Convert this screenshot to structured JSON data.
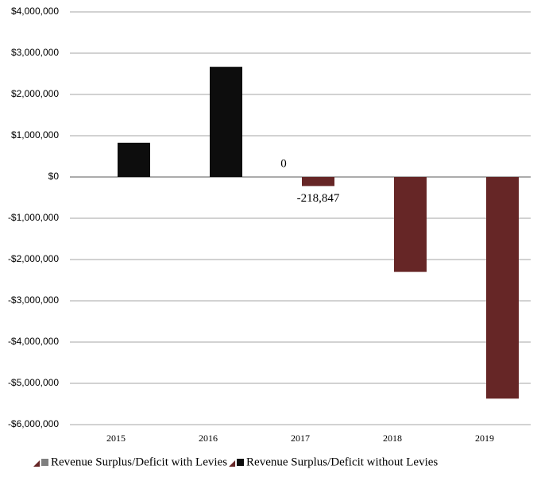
{
  "chart_data": {
    "type": "bar",
    "categories": [
      "2015",
      "2016",
      "2017",
      "2018",
      "2019"
    ],
    "series": [
      {
        "name": "Revenue Surplus/Deficit with Levies",
        "color": "#662626",
        "values": [
          null,
          null,
          -218847,
          -2300000,
          -5370000
        ],
        "value_labels": [
          null,
          null,
          "-218,847",
          null,
          null
        ]
      },
      {
        "name": "Revenue Surplus/Deficit without Levies",
        "color": "#0d0d0d",
        "values": [
          830000,
          2670000,
          0,
          null,
          null
        ],
        "value_labels": [
          null,
          null,
          "0",
          null,
          null
        ]
      }
    ],
    "ylim": [
      -6000000,
      4000000
    ],
    "yticks": [
      {
        "value": -6000000,
        "label": "-$6,000,000"
      },
      {
        "value": -5000000,
        "label": "-$5,000,000"
      },
      {
        "value": -4000000,
        "label": "-$4,000,000"
      },
      {
        "value": -3000000,
        "label": "-$3,000,000"
      },
      {
        "value": -2000000,
        "label": "-$2,000,000"
      },
      {
        "value": -1000000,
        "label": "-$1,000,000"
      },
      {
        "value": 0,
        "label": "$0"
      },
      {
        "value": 1000000,
        "label": "$1,000,000"
      },
      {
        "value": 2000000,
        "label": "$2,000,000"
      },
      {
        "value": 3000000,
        "label": "$3,000,000"
      },
      {
        "value": 4000000,
        "label": "$4,000,000"
      }
    ],
    "grid": true
  }
}
